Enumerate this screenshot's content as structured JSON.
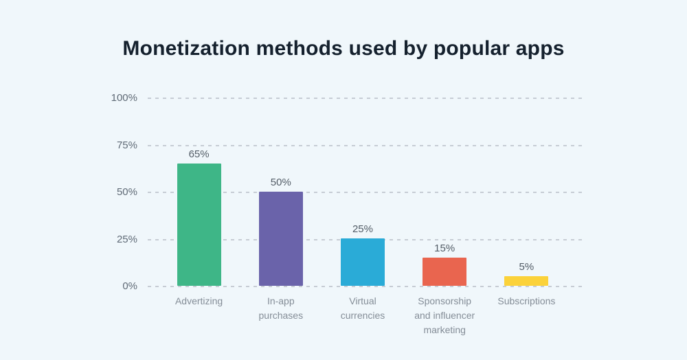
{
  "page": {
    "background_color": "#f0f7fb"
  },
  "chart_data": {
    "type": "bar",
    "title": "Monetization methods used by popular apps",
    "categories": [
      "Advertizing",
      "In-app purchases",
      "Virtual currencies",
      "Sponsorship and influencer marketing",
      "Subscriptions"
    ],
    "values": [
      65,
      50,
      25,
      15,
      5
    ],
    "value_labels": [
      "65%",
      "50%",
      "25%",
      "15%",
      "5%"
    ],
    "bar_colors": [
      "#3eb687",
      "#6a63aa",
      "#2aabd7",
      "#e9654f",
      "#fbd23a"
    ],
    "y_ticks": [
      "100%",
      "75%",
      "50%",
      "25%",
      "0%"
    ],
    "ylim": [
      0,
      100
    ],
    "xlabel": "",
    "ylabel": "",
    "grid": "horizontal dashed",
    "gridline_color": "#c6ccd4",
    "legend": "none",
    "title_color": "#15212e",
    "tick_label_color": "#5f6a76",
    "value_label_color": "#525c66",
    "category_label_color": "#848d97"
  }
}
